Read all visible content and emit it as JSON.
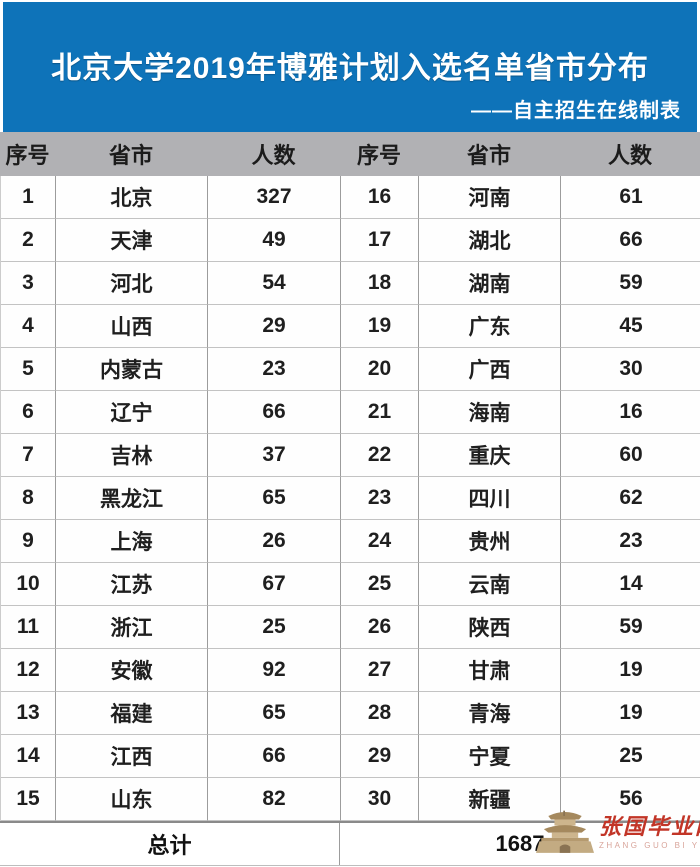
{
  "banner": {
    "title": "北京大学2019年博雅计划入选名单省市分布",
    "subtitle": "——自主招生在线制表",
    "bg_color": "#0e73b9",
    "text_color": "#ffffff"
  },
  "table": {
    "header_bg": "#b1b1b4",
    "columns": [
      "序号",
      "省市",
      "人数",
      "序号",
      "省市",
      "人数"
    ],
    "rows": [
      {
        "no_left": "1",
        "prov_left": "北京",
        "cnt_left": "327",
        "no_right": "16",
        "prov_right": "河南",
        "cnt_right": "61"
      },
      {
        "no_left": "2",
        "prov_left": "天津",
        "cnt_left": "49",
        "no_right": "17",
        "prov_right": "湖北",
        "cnt_right": "66"
      },
      {
        "no_left": "3",
        "prov_left": "河北",
        "cnt_left": "54",
        "no_right": "18",
        "prov_right": "湖南",
        "cnt_right": "59"
      },
      {
        "no_left": "4",
        "prov_left": "山西",
        "cnt_left": "29",
        "no_right": "19",
        "prov_right": "广东",
        "cnt_right": "45"
      },
      {
        "no_left": "5",
        "prov_left": "内蒙古",
        "cnt_left": "23",
        "no_right": "20",
        "prov_right": "广西",
        "cnt_right": "30"
      },
      {
        "no_left": "6",
        "prov_left": "辽宁",
        "cnt_left": "66",
        "no_right": "21",
        "prov_right": "海南",
        "cnt_right": "16"
      },
      {
        "no_left": "7",
        "prov_left": "吉林",
        "cnt_left": "37",
        "no_right": "22",
        "prov_right": "重庆",
        "cnt_right": "60"
      },
      {
        "no_left": "8",
        "prov_left": "黑龙江",
        "cnt_left": "65",
        "no_right": "23",
        "prov_right": "四川",
        "cnt_right": "62"
      },
      {
        "no_left": "9",
        "prov_left": "上海",
        "cnt_left": "26",
        "no_right": "24",
        "prov_right": "贵州",
        "cnt_right": "23"
      },
      {
        "no_left": "10",
        "prov_left": "江苏",
        "cnt_left": "67",
        "no_right": "25",
        "prov_right": "云南",
        "cnt_right": "14"
      },
      {
        "no_left": "11",
        "prov_left": "浙江",
        "cnt_left": "25",
        "no_right": "26",
        "prov_right": "陕西",
        "cnt_right": "59"
      },
      {
        "no_left": "12",
        "prov_left": "安徽",
        "cnt_left": "92",
        "no_right": "27",
        "prov_right": "甘肃",
        "cnt_right": "19"
      },
      {
        "no_left": "13",
        "prov_left": "福建",
        "cnt_left": "65",
        "no_right": "28",
        "prov_right": "青海",
        "cnt_right": "19"
      },
      {
        "no_left": "14",
        "prov_left": "江西",
        "cnt_left": "66",
        "no_right": "29",
        "prov_right": "宁夏",
        "cnt_right": "25"
      },
      {
        "no_left": "15",
        "prov_left": "山东",
        "cnt_left": "82",
        "no_right": "30",
        "prov_right": "新疆",
        "cnt_right": "56"
      }
    ],
    "total_label": "总计",
    "total_value": "1687"
  },
  "watermark": {
    "brand_text": "张国毕业网",
    "brand_caps": "ZHANG GUO BI YE WANG",
    "brand_color": "#c23527",
    "icon": "pagoda-icon"
  },
  "chart_data": {
    "type": "table",
    "title": "北京大学2019年博雅计划入选名单省市分布",
    "subtitle": "——自主招生在线制表",
    "columns": [
      "序号",
      "省市",
      "人数"
    ],
    "rows": [
      [
        1,
        "北京",
        327
      ],
      [
        2,
        "天津",
        49
      ],
      [
        3,
        "河北",
        54
      ],
      [
        4,
        "山西",
        29
      ],
      [
        5,
        "内蒙古",
        23
      ],
      [
        6,
        "辽宁",
        66
      ],
      [
        7,
        "吉林",
        37
      ],
      [
        8,
        "黑龙江",
        65
      ],
      [
        9,
        "上海",
        26
      ],
      [
        10,
        "江苏",
        67
      ],
      [
        11,
        "浙江",
        25
      ],
      [
        12,
        "安徽",
        92
      ],
      [
        13,
        "福建",
        65
      ],
      [
        14,
        "江西",
        66
      ],
      [
        15,
        "山东",
        82
      ],
      [
        16,
        "河南",
        61
      ],
      [
        17,
        "湖北",
        66
      ],
      [
        18,
        "湖南",
        59
      ],
      [
        19,
        "广东",
        45
      ],
      [
        20,
        "广西",
        30
      ],
      [
        21,
        "海南",
        16
      ],
      [
        22,
        "重庆",
        60
      ],
      [
        23,
        "四川",
        62
      ],
      [
        24,
        "贵州",
        23
      ],
      [
        25,
        "云南",
        14
      ],
      [
        26,
        "陕西",
        59
      ],
      [
        27,
        "甘肃",
        19
      ],
      [
        28,
        "青海",
        19
      ],
      [
        29,
        "宁夏",
        25
      ],
      [
        30,
        "新疆",
        56
      ]
    ],
    "total_label": "总计",
    "total": 1687
  }
}
